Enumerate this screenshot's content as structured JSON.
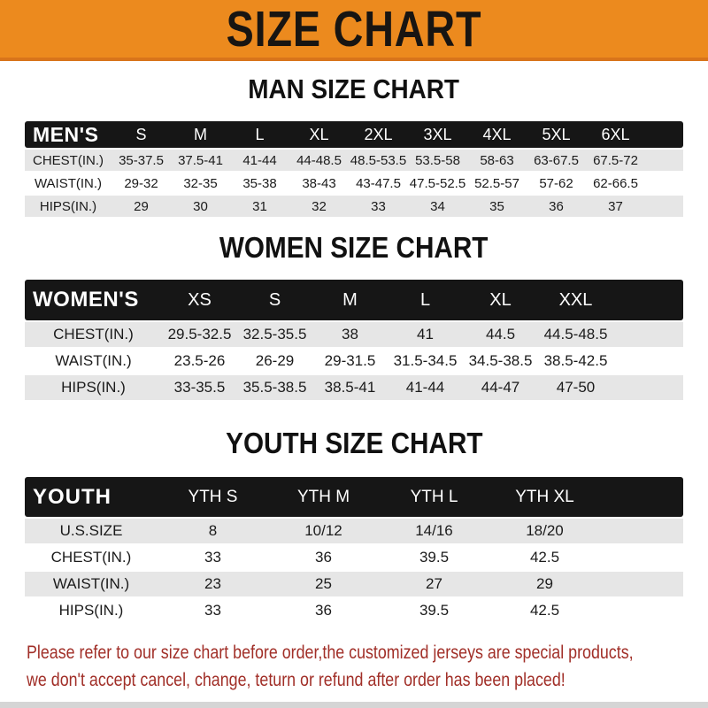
{
  "banner": {
    "title": "SIZE CHART"
  },
  "colors": {
    "banner_orange": "#EC8A1E",
    "banner_orange_dark": "#D8741B",
    "header_black": "#161616",
    "row_gray": "#E6E6E6",
    "row_white": "#FFFFFF",
    "footer_red": "#A12F28",
    "text_black": "#1B1B1B"
  },
  "sections": [
    {
      "title": "MAN SIZE CHART",
      "table": {
        "header": [
          "MEN'S",
          "S",
          "M",
          "L",
          "XL",
          "2XL",
          "3XL",
          "4XL",
          "5XL",
          "6XL"
        ],
        "rows": [
          [
            "CHEST(IN.)",
            "35-37.5",
            "37.5-41",
            "41-44",
            "44-48.5",
            "48.5-53.5",
            "53.5-58",
            "58-63",
            "63-67.5",
            "67.5-72"
          ],
          [
            "WAIST(IN.)",
            "29-32",
            "32-35",
            "35-38",
            "38-43",
            "43-47.5",
            "47.5-52.5",
            "52.5-57",
            "57-62",
            "62-66.5"
          ],
          [
            "HIPS(IN.)",
            "29",
            "30",
            "31",
            "32",
            "33",
            "34",
            "35",
            "36",
            "37"
          ]
        ]
      }
    },
    {
      "title": "WOMEN SIZE CHART",
      "table": {
        "header": [
          "WOMEN'S",
          "XS",
          "S",
          "M",
          "L",
          "XL",
          "XXL"
        ],
        "rows": [
          [
            "CHEST(IN.)",
            "29.5-32.5",
            "32.5-35.5",
            "38",
            "41",
            "44.5",
            "44.5-48.5"
          ],
          [
            "WAIST(IN.)",
            "23.5-26",
            "26-29",
            "29-31.5",
            "31.5-34.5",
            "34.5-38.5",
            "38.5-42.5"
          ],
          [
            "HIPS(IN.)",
            "33-35.5",
            "35.5-38.5",
            "38.5-41",
            "41-44",
            "44-47",
            "47-50"
          ]
        ]
      }
    },
    {
      "title": "YOUTH SIZE CHART",
      "table": {
        "header": [
          "YOUTH",
          "YTH S",
          "YTH M",
          "YTH L",
          "YTH XL"
        ],
        "rows": [
          [
            "U.S.SIZE",
            "8",
            "10/12",
            "14/16",
            "18/20"
          ],
          [
            "CHEST(IN.)",
            "33",
            "36",
            "39.5",
            "42.5"
          ],
          [
            "WAIST(IN.)",
            "23",
            "25",
            "27",
            "29"
          ],
          [
            "HIPS(IN.)",
            "33",
            "36",
            "39.5",
            "42.5"
          ]
        ]
      }
    }
  ],
  "footer": {
    "line1": "Please refer to our size chart before order,the customized jerseys are special products,",
    "line2": "we don't accept cancel, change, teturn or refund after order has been placed!"
  }
}
